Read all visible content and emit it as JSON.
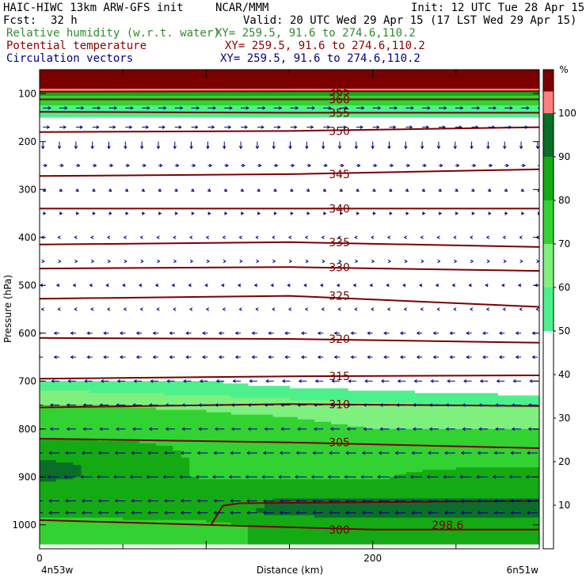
{
  "header": {
    "title": "HAIC-HIWC 13km ARW-GFS init",
    "org": "NCAR/MMM",
    "init": "Init: 12 UTC Tue 28 Apr 15",
    "fcst_label": "Fcst:",
    "fcst_value": "32 h",
    "valid": "Valid: 20 UTC Wed 29 Apr 15 (17 LST Wed 29 Apr 15)",
    "fields": [
      {
        "name": "Relative humidity (w.r.t. water)",
        "xy": "XY= 259.5, 91.6 to 274.6,110.2",
        "color": "#2e8b2e"
      },
      {
        "name": "Potential temperature",
        "xy": "XY= 259.5, 91.6 to 274.6,110.2",
        "color": "#8b0000"
      },
      {
        "name": "Circulation vectors",
        "xy": "XY= 259.5, 91.6 to 274.6,110.2",
        "color": "#000080"
      }
    ]
  },
  "chart_data": {
    "type": "heatmap",
    "title": "Relative humidity (w.r.t. water)",
    "xlabel": "Distance (km)",
    "ylabel": "Pressure (hPa)",
    "xlim": [
      0,
      300
    ],
    "ylim": [
      1050,
      50
    ],
    "x_ticks": [
      "0",
      "200"
    ],
    "x_end_labels": [
      "4n53w",
      "6n51w"
    ],
    "y_ticks": [
      100,
      200,
      300,
      400,
      500,
      600,
      700,
      800,
      900,
      1000
    ],
    "colorbar": {
      "unit": "%",
      "ticks": [
        10,
        20,
        30,
        40,
        50,
        60,
        70,
        80,
        90,
        100
      ],
      "bins": [
        {
          "from": 0,
          "to": 50,
          "color": "#ffffff"
        },
        {
          "from": 50,
          "to": 60,
          "color": "#4ef08c"
        },
        {
          "from": 60,
          "to": 70,
          "color": "#7ef07e"
        },
        {
          "from": 70,
          "to": 80,
          "color": "#32d232"
        },
        {
          "from": 80,
          "to": 90,
          "color": "#14aa14"
        },
        {
          "from": 90,
          "to": 100,
          "color": "#0a6e28"
        },
        {
          "from": 100,
          "to": 105,
          "color": "#ff7f7f"
        },
        {
          "from": 105,
          "to": 110,
          "color": "#7a0000"
        }
      ]
    },
    "rh_field": {
      "x_km": [
        0,
        50,
        100,
        150,
        200,
        250,
        300
      ],
      "levels_hPa": [
        1000,
        975,
        950,
        925,
        900,
        875,
        850,
        825,
        800,
        775,
        750,
        725,
        700
      ],
      "values": [
        [
          75,
          75,
          78,
          82,
          85,
          85,
          85
        ],
        [
          82,
          85,
          85,
          93,
          93,
          93,
          93
        ],
        [
          85,
          85,
          85,
          92,
          92,
          92,
          92
        ],
        [
          88,
          85,
          85,
          85,
          85,
          85,
          85
        ],
        [
          92,
          88,
          78,
          78,
          78,
          85,
          85
        ],
        [
          92,
          88,
          78,
          78,
          78,
          78,
          78
        ],
        [
          88,
          85,
          78,
          75,
          75,
          75,
          75
        ],
        [
          82,
          80,
          78,
          75,
          72,
          72,
          72
        ],
        [
          75,
          75,
          75,
          72,
          70,
          70,
          70
        ],
        [
          72,
          72,
          72,
          70,
          68,
          68,
          65
        ],
        [
          70,
          70,
          68,
          65,
          62,
          60,
          58
        ],
        [
          62,
          60,
          58,
          55,
          52,
          50,
          48
        ],
        [
          55,
          52,
          50,
          45,
          42,
          40,
          38
        ]
      ],
      "upper_bands": [
        {
          "p_top": 50,
          "p_bot": 90,
          "rh": 107
        },
        {
          "p_top": 90,
          "p_bot": 95,
          "rh": 102
        },
        {
          "p_top": 95,
          "p_bot": 105,
          "rh": 85
        },
        {
          "p_top": 105,
          "p_bot": 125,
          "rh": 72
        },
        {
          "p_top": 125,
          "p_bot": 150,
          "rh": 55
        }
      ]
    },
    "theta_contours": [
      {
        "label": "298.6",
        "points": [
          [
            103,
            1000
          ],
          [
            110,
            960
          ],
          [
            120,
            955
          ],
          [
            300,
            950
          ]
        ]
      },
      {
        "label": "300",
        "points": [
          [
            0,
            990
          ],
          [
            100,
            1000
          ],
          [
            200,
            1010
          ],
          [
            300,
            1010
          ]
        ]
      },
      {
        "label": "305",
        "points": [
          [
            0,
            820
          ],
          [
            150,
            828
          ],
          [
            300,
            840
          ]
        ]
      },
      {
        "label": "310",
        "points": [
          [
            0,
            755
          ],
          [
            150,
            748
          ],
          [
            300,
            752
          ]
        ]
      },
      {
        "label": "315",
        "points": [
          [
            0,
            695
          ],
          [
            150,
            690
          ],
          [
            300,
            688
          ]
        ]
      },
      {
        "label": "320",
        "points": [
          [
            0,
            610
          ],
          [
            150,
            612
          ],
          [
            300,
            620
          ]
        ]
      },
      {
        "label": "325",
        "points": [
          [
            0,
            528
          ],
          [
            150,
            522
          ],
          [
            300,
            545
          ]
        ]
      },
      {
        "label": "330",
        "points": [
          [
            0,
            465
          ],
          [
            150,
            462
          ],
          [
            300,
            470
          ]
        ]
      },
      {
        "label": "335",
        "points": [
          [
            0,
            415
          ],
          [
            150,
            410
          ],
          [
            300,
            420
          ]
        ]
      },
      {
        "label": "340",
        "points": [
          [
            0,
            340
          ],
          [
            150,
            340
          ],
          [
            300,
            340
          ]
        ]
      },
      {
        "label": "345",
        "points": [
          [
            0,
            272
          ],
          [
            150,
            268
          ],
          [
            300,
            258
          ]
        ]
      },
      {
        "label": "350",
        "points": [
          [
            0,
            180
          ],
          [
            150,
            178
          ],
          [
            300,
            170
          ]
        ]
      },
      {
        "label": "355",
        "points": [
          [
            0,
            138
          ],
          [
            150,
            140
          ],
          [
            300,
            140
          ]
        ]
      },
      {
        "label": "360",
        "points": [
          [
            0,
            112
          ],
          [
            150,
            112
          ],
          [
            300,
            112
          ]
        ]
      },
      {
        "label": "365",
        "points": [
          [
            0,
            96
          ],
          [
            150,
            95
          ],
          [
            300,
            95
          ]
        ]
      }
    ],
    "vectors": {
      "description": "Circulation vectors; mostly easterly flow (pointing west) in the lower/mid troposphere, westerly (pointing east) near 200-300 hPa aloft.",
      "levels": [
        {
          "p": 130,
          "u": 6,
          "w": 0
        },
        {
          "p": 170,
          "u": 5,
          "w": 0
        },
        {
          "p": 200,
          "u": 0,
          "w": -4
        },
        {
          "p": 250,
          "u": 3,
          "w": 0
        },
        {
          "p": 300,
          "u": 2,
          "w": -1
        },
        {
          "p": 350,
          "u": 2,
          "w": 0
        },
        {
          "p": 400,
          "u": -1,
          "w": 0
        },
        {
          "p": 450,
          "u": 1,
          "w": 0
        },
        {
          "p": 500,
          "u": -2,
          "w": 0
        },
        {
          "p": 550,
          "u": -1,
          "w": 0
        },
        {
          "p": 600,
          "u": -4,
          "w": 0
        },
        {
          "p": 650,
          "u": -4,
          "w": 0
        },
        {
          "p": 700,
          "u": -6,
          "w": 0
        },
        {
          "p": 750,
          "u": -7,
          "w": 0
        },
        {
          "p": 800,
          "u": -7,
          "w": 0
        },
        {
          "p": 850,
          "u": -8,
          "w": 0
        },
        {
          "p": 900,
          "u": -9,
          "w": 0
        },
        {
          "p": 950,
          "u": -8,
          "w": 0
        },
        {
          "p": 975,
          "u": -8,
          "w": 0
        }
      ]
    }
  }
}
